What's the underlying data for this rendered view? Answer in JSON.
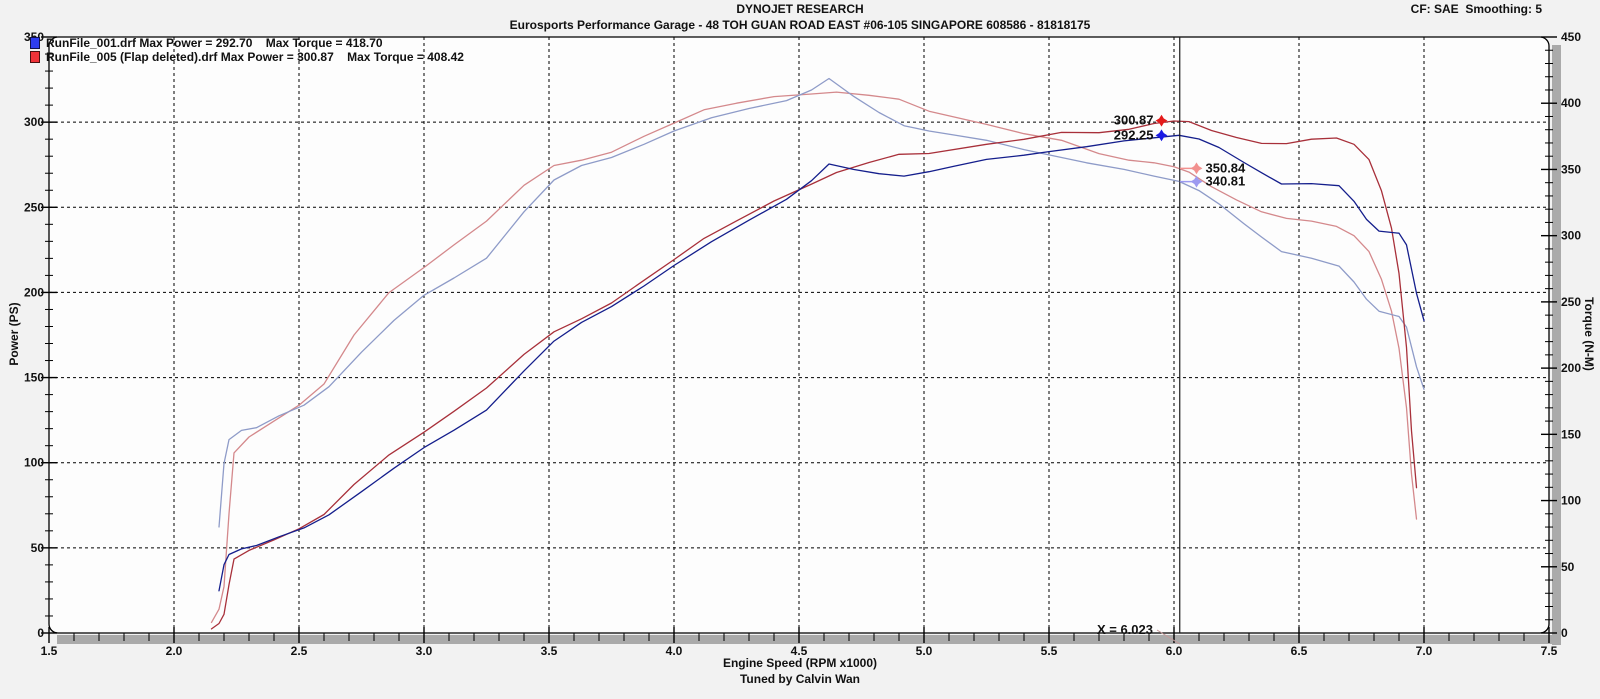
{
  "header": {
    "title": "DYNOJET RESEARCH",
    "subtitle": "Eurosports Performance Garage - 48 TOH GUAN ROAD EAST #06-105 SINGAPORE 608586 - 81818175",
    "correction_note": "CF: SAE  Smoothing: 5"
  },
  "footer": {
    "credit": "Tuned by Calvin Wan"
  },
  "legend": [
    {
      "label": "RunFile_001.drf Max Power = 292.70    Max Torque = 418.70",
      "chip_color": "#2d3cf0",
      "chip_border": "#10104a"
    },
    {
      "label": "RunFile_005 (Flap deleted).drf Max Power = 300.87    Max Torque = 408.42",
      "chip_color": "#ef3238",
      "chip_border": "#4a1010"
    }
  ],
  "cursor": {
    "x": 6.023,
    "label": "X = 6.023",
    "pointer_color": "#c49a9a"
  },
  "annotations": [
    {
      "value": "300.87",
      "axis": "power",
      "rpm_marker": 5.95,
      "y_value": 300.87,
      "side": "left",
      "marker_color": "#e41a1a"
    },
    {
      "value": "292.25",
      "axis": "power",
      "rpm_marker": 5.95,
      "y_value": 292.25,
      "side": "left",
      "marker_color": "#1a1ae4"
    },
    {
      "value": "350.84",
      "axis": "torque",
      "rpm_marker": 6.09,
      "y_value": 350.84,
      "side": "right",
      "marker_color": "#f2918f"
    },
    {
      "value": "340.81",
      "axis": "torque",
      "rpm_marker": 6.09,
      "y_value": 340.81,
      "side": "right",
      "marker_color": "#9d9af0"
    }
  ],
  "chart_data": {
    "type": "line",
    "title": "DYNOJET RESEARCH",
    "xlabel": "Engine Speed (RPM x1000)",
    "grid": "dashed-black",
    "legend_position": "top-left-inside",
    "axes": {
      "x": {
        "label": "Engine Speed (RPM x1000)",
        "min": 1.5,
        "max": 7.5,
        "major": 0.5,
        "minor": 0.1,
        "tick_labels": [
          "1.5",
          "2.0",
          "2.5",
          "3.0",
          "3.5",
          "4.0",
          "4.5",
          "5.0",
          "5.5",
          "6.0",
          "6.5",
          "7.0",
          "7.5"
        ]
      },
      "power": {
        "label": "Power (PS)",
        "side": "left",
        "min": 0,
        "max": 350,
        "major": 50,
        "minor": 10,
        "tick_labels": [
          "0",
          "50",
          "100",
          "150",
          "200",
          "250",
          "300",
          "350"
        ]
      },
      "torque": {
        "label": "Torque (N-M)",
        "side": "right",
        "min": 0,
        "max": 450,
        "major": 50,
        "minor": 10,
        "tick_labels": [
          "0",
          "50",
          "100",
          "150",
          "200",
          "250",
          "300",
          "350",
          "400",
          "450"
        ]
      }
    },
    "series": [
      {
        "id": "torque_005",
        "run": "RunFile_005 (Flap deleted).drf",
        "quantity": "torque",
        "axis": "torque",
        "color": "#d4898c",
        "max_value": 408.42,
        "points": [
          [
            2.15,
            8
          ],
          [
            2.18,
            18
          ],
          [
            2.2,
            35
          ],
          [
            2.22,
            90
          ],
          [
            2.24,
            136
          ],
          [
            2.3,
            148
          ],
          [
            2.4,
            160
          ],
          [
            2.5,
            172
          ],
          [
            2.6,
            188
          ],
          [
            2.72,
            225
          ],
          [
            2.86,
            257
          ],
          [
            3.0,
            276
          ],
          [
            3.12,
            293
          ],
          [
            3.25,
            311
          ],
          [
            3.4,
            338
          ],
          [
            3.52,
            353
          ],
          [
            3.63,
            357
          ],
          [
            3.75,
            363
          ],
          [
            3.88,
            375
          ],
          [
            4.0,
            385
          ],
          [
            4.12,
            395
          ],
          [
            4.25,
            400
          ],
          [
            4.4,
            405
          ],
          [
            4.55,
            407
          ],
          [
            4.65,
            408.42
          ],
          [
            4.78,
            406
          ],
          [
            4.9,
            403
          ],
          [
            5.02,
            394
          ],
          [
            5.25,
            384
          ],
          [
            5.4,
            377
          ],
          [
            5.55,
            372
          ],
          [
            5.7,
            362
          ],
          [
            5.82,
            357
          ],
          [
            5.92,
            355
          ],
          [
            6.0,
            352
          ],
          [
            6.06,
            348
          ],
          [
            6.15,
            337
          ],
          [
            6.25,
            327
          ],
          [
            6.35,
            318
          ],
          [
            6.45,
            313
          ],
          [
            6.55,
            311
          ],
          [
            6.65,
            307
          ],
          [
            6.72,
            300
          ],
          [
            6.78,
            288
          ],
          [
            6.83,
            267
          ],
          [
            6.87,
            243
          ],
          [
            6.9,
            215
          ],
          [
            6.93,
            170
          ],
          [
            6.95,
            120
          ],
          [
            6.97,
            86
          ]
        ]
      },
      {
        "id": "torque_001",
        "run": "RunFile_001.drf",
        "quantity": "torque",
        "axis": "torque",
        "color": "#8e9bc8",
        "max_value": 418.7,
        "points": [
          [
            2.18,
            80
          ],
          [
            2.2,
            128
          ],
          [
            2.22,
            146
          ],
          [
            2.27,
            153
          ],
          [
            2.33,
            155
          ],
          [
            2.42,
            164
          ],
          [
            2.52,
            172
          ],
          [
            2.62,
            186
          ],
          [
            2.75,
            212
          ],
          [
            2.88,
            236
          ],
          [
            3.0,
            255
          ],
          [
            3.12,
            268
          ],
          [
            3.25,
            283
          ],
          [
            3.4,
            318
          ],
          [
            3.52,
            342
          ],
          [
            3.63,
            353
          ],
          [
            3.75,
            359
          ],
          [
            3.88,
            369
          ],
          [
            4.0,
            379
          ],
          [
            4.15,
            389
          ],
          [
            4.3,
            396
          ],
          [
            4.45,
            402
          ],
          [
            4.55,
            410
          ],
          [
            4.62,
            418.7
          ],
          [
            4.72,
            405
          ],
          [
            4.82,
            393
          ],
          [
            4.92,
            383
          ],
          [
            5.02,
            379
          ],
          [
            5.12,
            376
          ],
          [
            5.25,
            372
          ],
          [
            5.4,
            365
          ],
          [
            5.5,
            361
          ],
          [
            5.65,
            355
          ],
          [
            5.8,
            350
          ],
          [
            5.92,
            345
          ],
          [
            6.02,
            341
          ],
          [
            6.1,
            334
          ],
          [
            6.18,
            324
          ],
          [
            6.28,
            309
          ],
          [
            6.35,
            299
          ],
          [
            6.43,
            288
          ],
          [
            6.55,
            283
          ],
          [
            6.66,
            277
          ],
          [
            6.72,
            265
          ],
          [
            6.77,
            252
          ],
          [
            6.82,
            243
          ],
          [
            6.9,
            239
          ],
          [
            6.93,
            231
          ],
          [
            6.97,
            201
          ],
          [
            7.0,
            184
          ]
        ]
      },
      {
        "id": "power_005",
        "run": "RunFile_005 (Flap deleted).drf",
        "quantity": "power",
        "axis": "power",
        "color": "#a8303a",
        "max_value": 300.87,
        "points": [
          [
            2.15,
            2.4
          ],
          [
            2.18,
            5.6
          ],
          [
            2.2,
            11
          ],
          [
            2.22,
            28.4
          ],
          [
            2.24,
            43.4
          ],
          [
            2.3,
            48.5
          ],
          [
            2.4,
            54.7
          ],
          [
            2.5,
            61.2
          ],
          [
            2.6,
            69.6
          ],
          [
            2.72,
            87.2
          ],
          [
            2.86,
            104.6
          ],
          [
            3.0,
            117.9
          ],
          [
            3.12,
            130.2
          ],
          [
            3.25,
            143.9
          ],
          [
            3.4,
            163.6
          ],
          [
            3.52,
            176.9
          ],
          [
            3.63,
            184.5
          ],
          [
            3.75,
            193.8
          ],
          [
            3.88,
            207.1
          ],
          [
            4.0,
            219.3
          ],
          [
            4.12,
            231.7
          ],
          [
            4.25,
            242
          ],
          [
            4.4,
            253.7
          ],
          [
            4.55,
            263.6
          ],
          [
            4.65,
            270.4
          ],
          [
            4.78,
            276.3
          ],
          [
            4.9,
            281.1
          ],
          [
            5.02,
            281.6
          ],
          [
            5.25,
            287
          ],
          [
            5.4,
            289.9
          ],
          [
            5.55,
            294
          ],
          [
            5.7,
            293.8
          ],
          [
            5.82,
            295.8
          ],
          [
            5.92,
            299.2
          ],
          [
            6.0,
            300.7
          ],
          [
            6.06,
            300.3
          ],
          [
            6.15,
            295.1
          ],
          [
            6.25,
            291
          ],
          [
            6.35,
            287.5
          ],
          [
            6.45,
            287.4
          ],
          [
            6.55,
            290
          ],
          [
            6.65,
            290.7
          ],
          [
            6.72,
            287
          ],
          [
            6.78,
            278
          ],
          [
            6.83,
            259.6
          ],
          [
            6.87,
            237.7
          ],
          [
            6.9,
            211.2
          ],
          [
            6.93,
            167.7
          ],
          [
            6.95,
            118.7
          ],
          [
            6.97,
            85.3
          ]
        ]
      },
      {
        "id": "power_001",
        "run": "RunFile_001.drf",
        "quantity": "power",
        "axis": "power",
        "color": "#141e8c",
        "max_value": 292.7,
        "points": [
          [
            2.18,
            24.8
          ],
          [
            2.2,
            40.1
          ],
          [
            2.22,
            46.1
          ],
          [
            2.27,
            49.4
          ],
          [
            2.33,
            51.4
          ],
          [
            2.42,
            56.5
          ],
          [
            2.52,
            61.7
          ],
          [
            2.62,
            69.4
          ],
          [
            2.75,
            83
          ],
          [
            2.88,
            96.8
          ],
          [
            3.0,
            108.9
          ],
          [
            3.12,
            119.1
          ],
          [
            3.25,
            130.9
          ],
          [
            3.4,
            153.9
          ],
          [
            3.52,
            171.4
          ],
          [
            3.63,
            182.4
          ],
          [
            3.75,
            191.7
          ],
          [
            3.88,
            203.8
          ],
          [
            4.0,
            215.8
          ],
          [
            4.15,
            229.8
          ],
          [
            4.3,
            242.4
          ],
          [
            4.45,
            254.7
          ],
          [
            4.55,
            265.6
          ],
          [
            4.62,
            275.4
          ],
          [
            4.72,
            272.2
          ],
          [
            4.82,
            269.7
          ],
          [
            4.92,
            268.3
          ],
          [
            5.02,
            270.9
          ],
          [
            5.12,
            274.1
          ],
          [
            5.25,
            278.1
          ],
          [
            5.4,
            280.6
          ],
          [
            5.5,
            282.7
          ],
          [
            5.65,
            285.6
          ],
          [
            5.8,
            289
          ],
          [
            5.92,
            290.8
          ],
          [
            6.02,
            292.3
          ],
          [
            6.1,
            290.1
          ],
          [
            6.18,
            285.1
          ],
          [
            6.28,
            276.3
          ],
          [
            6.35,
            270.3
          ],
          [
            6.43,
            263.7
          ],
          [
            6.55,
            263.9
          ],
          [
            6.66,
            262.7
          ],
          [
            6.72,
            253.5
          ],
          [
            6.77,
            242.9
          ],
          [
            6.82,
            236
          ],
          [
            6.9,
            234.8
          ],
          [
            6.93,
            227.9
          ],
          [
            6.97,
            199.5
          ],
          [
            7.0,
            183.4
          ]
        ]
      }
    ]
  }
}
